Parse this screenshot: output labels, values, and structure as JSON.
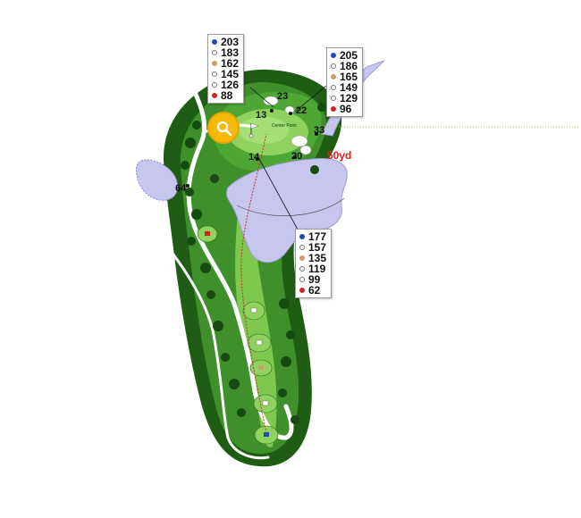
{
  "colors": {
    "rough_dark": "#1f5c14",
    "rough": "#3f8f2a",
    "fairway": "#7ec84f",
    "green": "#8fd260",
    "water": "#c7c6ee",
    "path": "#ffffff",
    "shot_line": "#c0392b",
    "callout_line": "#c9b04a",
    "zoom_button": "#f5b90a"
  },
  "yardage_boxes": {
    "top_left": {
      "rows": [
        {
          "tee": "blue",
          "value": "203"
        },
        {
          "tee": "white",
          "value": "183"
        },
        {
          "tee": "gold",
          "value": "162"
        },
        {
          "tee": "ladies",
          "value": "145"
        },
        {
          "tee": "ladies2",
          "value": "126"
        },
        {
          "tee": "red",
          "value": "88"
        }
      ]
    },
    "top_right": {
      "rows": [
        {
          "tee": "blue",
          "value": "205"
        },
        {
          "tee": "white",
          "value": "186"
        },
        {
          "tee": "gold",
          "value": "165"
        },
        {
          "tee": "ladies",
          "value": "149"
        },
        {
          "tee": "ladies2",
          "value": "129"
        },
        {
          "tee": "red",
          "value": "96"
        }
      ]
    },
    "middle": {
      "rows": [
        {
          "tee": "blue",
          "value": "177"
        },
        {
          "tee": "white",
          "value": "157"
        },
        {
          "tee": "gold",
          "value": "135"
        },
        {
          "tee": "ladies",
          "value": "119"
        },
        {
          "tee": "ladies2",
          "value": "99"
        },
        {
          "tee": "red",
          "value": "62"
        }
      ]
    }
  },
  "tee_colors": {
    "blue": "#2446b8",
    "white": "#ffffff",
    "gold": "#c8a06a",
    "ladies": "#ffffff",
    "ladies2": "#ffffff",
    "red": "#d61f1f"
  },
  "green_distances": {
    "d23": "23",
    "d13": "13",
    "d22": "22",
    "d33": "33",
    "d14": "14",
    "d20": "20",
    "d64": "64"
  },
  "center_point_label": "Center Point",
  "yd_label": "50yd",
  "zoom_icon": "magnifier-icon"
}
